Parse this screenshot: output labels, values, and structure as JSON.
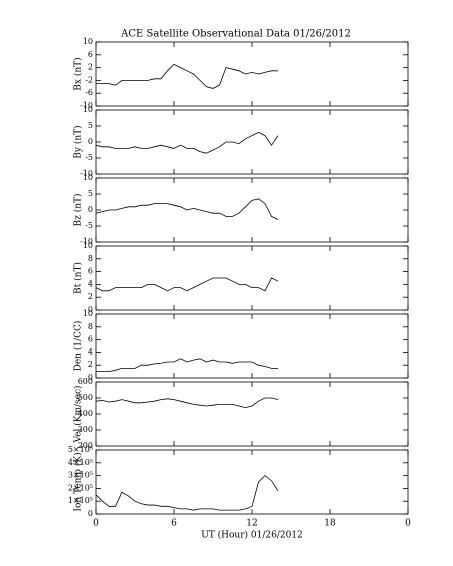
{
  "chart_data": [
    {
      "type": "line",
      "title": "ACE Satellite Observational Data   01/26/2012",
      "ylabel": "Bx (nT)",
      "xlim": [
        0,
        24
      ],
      "ylim": [
        -10,
        10
      ],
      "yticks": [
        -10,
        -6,
        -2,
        2,
        6,
        10
      ],
      "x": [
        0,
        0.5,
        1,
        1.5,
        2,
        2.5,
        3,
        3.5,
        4,
        4.5,
        5,
        5.5,
        6,
        6.5,
        7,
        7.5,
        8,
        8.5,
        9,
        9.5,
        10,
        10.5,
        11,
        11.5,
        12,
        12.5,
        13,
        13.5,
        14
      ],
      "series": [
        {
          "color": "#000000",
          "values": [
            -3,
            -3,
            -3,
            -3.5,
            -2,
            -2,
            -2,
            -2,
            -2,
            -1.5,
            -1.5,
            1,
            3,
            2,
            1,
            0,
            -2,
            -4,
            -4.5,
            -3.5,
            2,
            1.5,
            1,
            0,
            0.5,
            0,
            0.5,
            1,
            1
          ]
        }
      ]
    },
    {
      "type": "line",
      "ylabel": "By (nT)",
      "xlim": [
        0,
        24
      ],
      "ylim": [
        -10,
        10
      ],
      "yticks": [
        -10,
        -5,
        0,
        5,
        10
      ],
      "x": [
        0,
        0.5,
        1,
        1.5,
        2,
        2.5,
        3,
        3.5,
        4,
        4.5,
        5,
        5.5,
        6,
        6.5,
        7,
        7.5,
        8,
        8.5,
        9,
        9.5,
        10,
        10.5,
        11,
        11.5,
        12,
        12.5,
        13,
        13.5,
        14
      ],
      "series": [
        {
          "color": "#000000",
          "values": [
            -1,
            -1.5,
            -1.5,
            -2,
            -2,
            -2,
            -1.5,
            -2,
            -2,
            -1.5,
            -1,
            -1.5,
            -2,
            -1,
            -2,
            -2,
            -3,
            -3.5,
            -2.5,
            -1.5,
            0,
            0,
            -0.5,
            1,
            2,
            3,
            2,
            -1,
            2
          ]
        }
      ]
    },
    {
      "type": "line",
      "ylabel": "Bz (nT)",
      "xlim": [
        0,
        24
      ],
      "ylim": [
        -10,
        10
      ],
      "yticks": [
        -10,
        -5,
        0,
        5,
        10
      ],
      "x": [
        0,
        0.5,
        1,
        1.5,
        2,
        2.5,
        3,
        3.5,
        4,
        4.5,
        5,
        5.5,
        6,
        6.5,
        7,
        7.5,
        8,
        8.5,
        9,
        9.5,
        10,
        10.5,
        11,
        11.5,
        12,
        12.5,
        13,
        13.5,
        14
      ],
      "series": [
        {
          "color": "#000000",
          "values": [
            -1,
            -0.5,
            0,
            0,
            0.5,
            1,
            1,
            1.5,
            1.5,
            2,
            2,
            2,
            1.5,
            1,
            0,
            0.5,
            0,
            -0.5,
            -1,
            -1,
            -2,
            -2,
            -1,
            1,
            3,
            3.5,
            2,
            -2,
            -3
          ]
        }
      ]
    },
    {
      "type": "line",
      "ylabel": "Bt (nT)",
      "xlim": [
        0,
        24
      ],
      "ylim": [
        0,
        10
      ],
      "yticks": [
        0,
        2,
        4,
        6,
        8,
        10
      ],
      "x": [
        0,
        0.5,
        1,
        1.5,
        2,
        2.5,
        3,
        3.5,
        4,
        4.5,
        5,
        5.5,
        6,
        6.5,
        7,
        7.5,
        8,
        8.5,
        9,
        9.5,
        10,
        10.5,
        11,
        11.5,
        12,
        12.5,
        13,
        13.5,
        14
      ],
      "series": [
        {
          "color": "#000000",
          "values": [
            3.5,
            3,
            3,
            3.5,
            3.5,
            3.5,
            3.5,
            3.5,
            4,
            4,
            3.5,
            3,
            3.5,
            3.5,
            3,
            3.5,
            4,
            4.5,
            5,
            5,
            5,
            4.5,
            4,
            4,
            3.5,
            3.5,
            3,
            5,
            4.5
          ]
        }
      ]
    },
    {
      "type": "line",
      "ylabel": "Den (1/CC)",
      "xlim": [
        0,
        24
      ],
      "ylim": [
        0,
        10
      ],
      "yticks": [
        0,
        2,
        4,
        6,
        8,
        10
      ],
      "x": [
        0,
        0.5,
        1,
        1.5,
        2,
        2.5,
        3,
        3.5,
        4,
        4.5,
        5,
        5.5,
        6,
        6.5,
        7,
        7.5,
        8,
        8.5,
        9,
        9.5,
        10,
        10.5,
        11,
        11.5,
        12,
        12.5,
        13,
        13.5,
        14
      ],
      "series": [
        {
          "color": "#000000",
          "values": [
            1,
            1,
            1,
            1.2,
            1.5,
            1.5,
            1.5,
            2,
            2,
            2.2,
            2.3,
            2.5,
            2.5,
            3,
            2.5,
            2.8,
            3,
            2.5,
            2.8,
            2.5,
            2.5,
            2.3,
            2.5,
            2.5,
            2.5,
            2,
            1.8,
            1.5,
            1.5
          ]
        }
      ]
    },
    {
      "type": "line",
      "ylabel": "Vel (Km/sec)",
      "xlim": [
        0,
        24
      ],
      "ylim": [
        200,
        600
      ],
      "yticks": [
        200,
        300,
        400,
        500,
        600
      ],
      "x": [
        0,
        0.5,
        1,
        1.5,
        2,
        2.5,
        3,
        3.5,
        4,
        4.5,
        5,
        5.5,
        6,
        6.5,
        7,
        7.5,
        8,
        8.5,
        9,
        9.5,
        10,
        10.5,
        11,
        11.5,
        12,
        12.5,
        13,
        13.5,
        14
      ],
      "series": [
        {
          "color": "#000000",
          "values": [
            480,
            485,
            475,
            480,
            490,
            480,
            470,
            470,
            475,
            480,
            490,
            495,
            490,
            480,
            470,
            460,
            455,
            450,
            455,
            460,
            460,
            460,
            450,
            440,
            450,
            480,
            500,
            500,
            490
          ]
        }
      ]
    },
    {
      "type": "line",
      "ylabel": "Ion Temp (K)",
      "xlabel": "UT (Hour)   01/26/2012",
      "xlim": [
        0,
        24
      ],
      "ylim": [
        0,
        500000
      ],
      "yticks": [
        0,
        {
          "value": 100000,
          "label": "1×10⁵"
        },
        {
          "value": 200000,
          "label": "2×10⁵"
        },
        {
          "value": 300000,
          "label": "3×10⁵"
        },
        {
          "value": 400000,
          "label": "4×10⁵"
        },
        {
          "value": 500000,
          "label": "5×10⁵"
        }
      ],
      "xticks": [
        0,
        6,
        12,
        18,
        {
          "value": 24,
          "label": "0"
        }
      ],
      "x": [
        0,
        0.5,
        1,
        1.5,
        2,
        2.5,
        3,
        3.5,
        4,
        4.5,
        5,
        5.5,
        6,
        6.5,
        7,
        7.5,
        8,
        8.5,
        9,
        9.5,
        10,
        10.5,
        11,
        11.5,
        12,
        12.5,
        13,
        13.5,
        14
      ],
      "series": [
        {
          "color": "#000000",
          "values": [
            150000,
            100000,
            60000,
            60000,
            170000,
            140000,
            100000,
            80000,
            70000,
            70000,
            60000,
            60000,
            50000,
            40000,
            40000,
            30000,
            40000,
            40000,
            40000,
            30000,
            30000,
            30000,
            30000,
            40000,
            60000,
            250000,
            300000,
            260000,
            180000
          ]
        }
      ]
    }
  ]
}
